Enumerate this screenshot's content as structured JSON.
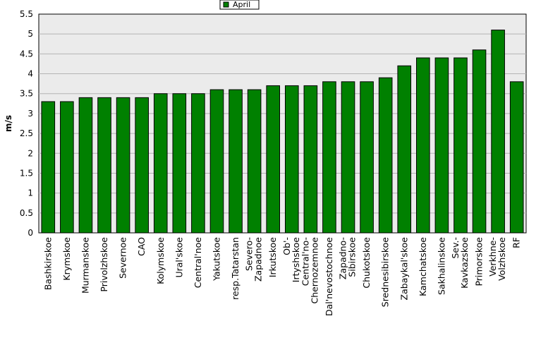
{
  "chart_data": {
    "type": "bar",
    "title": "",
    "xlabel": "",
    "ylabel": "m/s",
    "ylim": [
      0,
      5.5
    ],
    "yticks": [
      "0",
      "0.5",
      "1",
      "1.5",
      "2",
      "2.5",
      "3",
      "3.5",
      "4",
      "4.5",
      "5",
      "5.5"
    ],
    "grid": true,
    "legend_position": "top-center",
    "series": [
      {
        "name": "April",
        "color": "#008000",
        "values": [
          3.3,
          3.3,
          3.4,
          3.4,
          3.4,
          3.4,
          3.5,
          3.5,
          3.5,
          3.6,
          3.6,
          3.6,
          3.7,
          3.7,
          3.7,
          3.8,
          3.8,
          3.8,
          3.9,
          4.2,
          4.4,
          4.4,
          4.4,
          4.6,
          5.1,
          3.8
        ]
      }
    ],
    "categories": [
      [
        "Bashkirskoe"
      ],
      [
        "Krymskoe"
      ],
      [
        "Murmanskoe"
      ],
      [
        "Privolzhskoe"
      ],
      [
        "Severnoe"
      ],
      [
        "CAO"
      ],
      [
        "Kolymskoe"
      ],
      [
        "Ural'skoe"
      ],
      [
        "Central'noe"
      ],
      [
        "Yakutskoe"
      ],
      [
        "resp.Tatarstan"
      ],
      [
        "Severo-",
        "Zapadnoe"
      ],
      [
        "Irkutskoe"
      ],
      [
        "Ob'-",
        "Irtyshskoe"
      ],
      [
        "Central'no-",
        "Chernozemnoe"
      ],
      [
        "Dal'nevostochnoe"
      ],
      [
        "Zapadno-",
        "Sibirskoe"
      ],
      [
        "Chukotskoe"
      ],
      [
        "Srednesibirskoe"
      ],
      [
        "Zabaykal'skoe"
      ],
      [
        "Kamchatskoe"
      ],
      [
        "Sakhalinskoe"
      ],
      [
        "Sev.-",
        "Kavkazskoe"
      ],
      [
        "Primorskoe"
      ],
      [
        "Verkhne-",
        "Volzhskoe"
      ],
      [
        "RF"
      ]
    ]
  },
  "colors": {
    "plot_background": "#ebebeb",
    "grid": "#b4b4b4",
    "bar_fill": "#008000",
    "bar_stroke": "#000000"
  }
}
